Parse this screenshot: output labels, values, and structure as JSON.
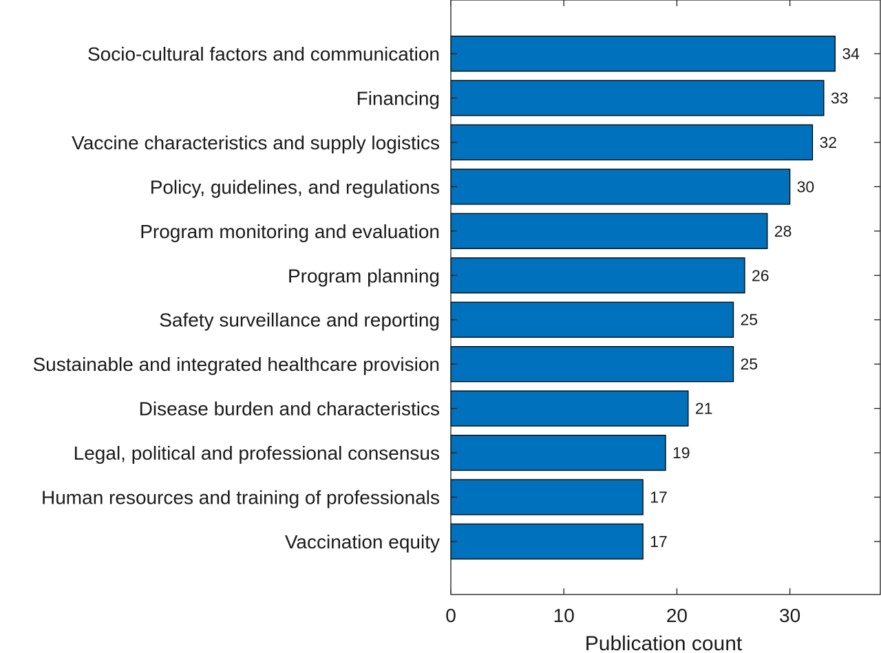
{
  "chart_data": {
    "type": "bar",
    "orientation": "horizontal",
    "categories": [
      "Socio-cultural factors and communication",
      "Financing",
      "Vaccine characteristics and supply logistics",
      "Policy, guidelines, and regulations",
      "Program monitoring and evaluation",
      "Program planning",
      "Safety surveillance and reporting",
      "Sustainable and integrated healthcare provision",
      "Disease burden and characteristics",
      "Legal, political and professional consensus",
      "Human resources and training of professionals",
      "Vaccination equity"
    ],
    "values": [
      34,
      33,
      32,
      30,
      28,
      26,
      25,
      25,
      21,
      19,
      17,
      17
    ],
    "title": "",
    "xlabel": "Publication count",
    "ylabel": "",
    "xlim": [
      0,
      38
    ],
    "xticks": [
      0,
      10,
      20,
      30
    ],
    "grid": false,
    "bar_color": "#0072BD",
    "bar_edge_color": "#000000",
    "show_value_labels": true
  }
}
